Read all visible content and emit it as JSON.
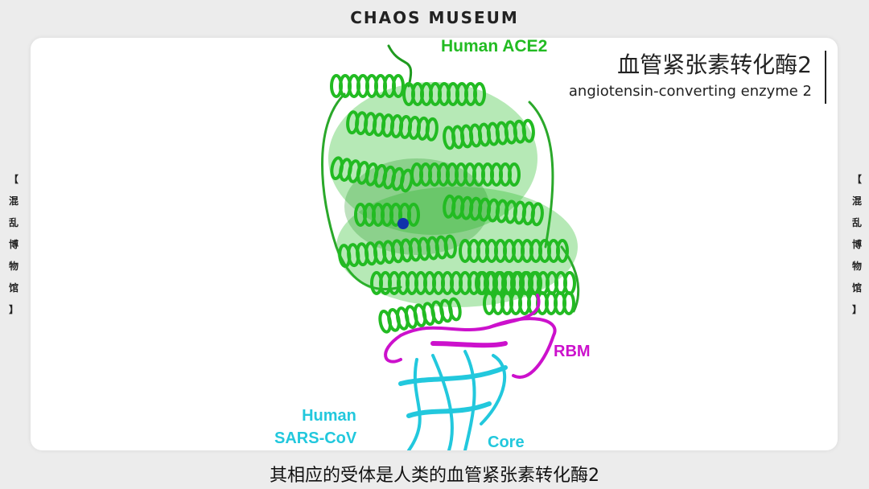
{
  "header": {
    "title": "CHAOS MUSEUM"
  },
  "side_label": {
    "chars": [
      "【",
      "混",
      "乱",
      "博",
      "物",
      "馆",
      "】"
    ]
  },
  "annotation": {
    "chinese": "血管紧张素转化酶2",
    "english": "angiotensin-converting enzyme 2"
  },
  "figure": {
    "label_ace2": "Human ACE2",
    "label_rbm": "RBM",
    "label_human": "Human",
    "label_sars": "SARS-CoV",
    "label_core": "Core",
    "colors": {
      "ace2": "#22bb22",
      "rbm": "#cc11cc",
      "core": "#22c8dd",
      "ion": "#1133aa"
    }
  },
  "subtitle": "其相应的受体是人类的血管紧张素转化酶2"
}
